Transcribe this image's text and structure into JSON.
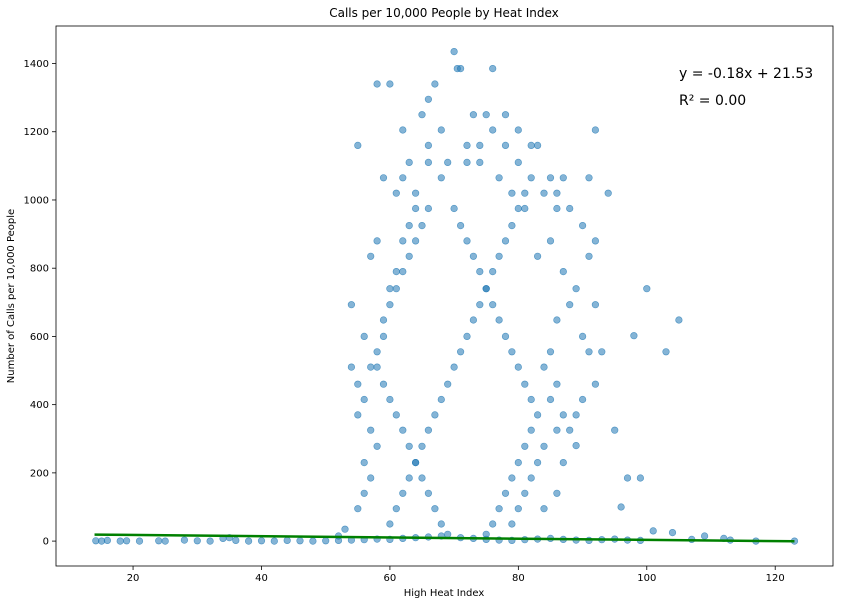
{
  "chart_data": {
    "type": "scatter",
    "title": "Calls per 10,000 People by Heat Index",
    "xlabel": "High Heat Index",
    "ylabel": "Number of Calls per 10,000 People",
    "xlim": [
      8,
      129
    ],
    "ylim": [
      -73,
      1510
    ],
    "xticks": [
      20,
      40,
      60,
      80,
      100,
      120
    ],
    "yticks": [
      0,
      200,
      400,
      600,
      800,
      1000,
      1200,
      1400
    ],
    "grid": false,
    "colors": {
      "points": "#1f77b4",
      "fit_line": "#008000"
    },
    "annotations": {
      "equation": "y = -0.18x + 21.53",
      "r_squared": "R² = 0.00"
    },
    "fit_line": {
      "slope": -0.18,
      "intercept": 21.53,
      "x_range": [
        14,
        123
      ]
    },
    "series": [
      {
        "values": [
          [
            14.2,
            1
          ],
          [
            15.1,
            0
          ],
          [
            16,
            2
          ],
          [
            18,
            0
          ],
          [
            19,
            1
          ],
          [
            21,
            0
          ],
          [
            24,
            1
          ],
          [
            25,
            0
          ],
          [
            28,
            3
          ],
          [
            30,
            1
          ],
          [
            32,
            0
          ],
          [
            34,
            8
          ],
          [
            35,
            10
          ],
          [
            36,
            2
          ],
          [
            38,
            0
          ],
          [
            40,
            1
          ],
          [
            42,
            0
          ],
          [
            44,
            2
          ],
          [
            55,
            1160
          ],
          [
            58,
            1340
          ],
          [
            60,
            1340
          ],
          [
            62,
            1205
          ],
          [
            65,
            1250
          ],
          [
            66,
            1295
          ],
          [
            67,
            1340
          ],
          [
            70,
            1435
          ],
          [
            70.5,
            1385
          ],
          [
            71,
            1385
          ],
          [
            73,
            1250
          ],
          [
            75,
            1250
          ],
          [
            76,
            1385
          ],
          [
            78,
            1250
          ],
          [
            80,
            1205
          ],
          [
            83,
            1160
          ],
          [
            92,
            1205
          ],
          [
            94,
            1020
          ],
          [
            91,
            1065
          ],
          [
            100,
            740
          ],
          [
            105,
            648
          ],
          [
            103,
            555
          ],
          [
            98,
            602
          ],
          [
            99,
            185
          ],
          [
            95,
            325
          ],
          [
            93,
            555
          ],
          [
            92,
            693
          ],
          [
            97,
            185
          ],
          [
            96,
            100
          ],
          [
            117,
            0
          ],
          [
            123,
            0
          ],
          [
            112,
            8
          ],
          [
            109,
            15
          ],
          [
            104,
            25
          ],
          [
            101,
            30
          ],
          [
            107,
            5
          ],
          [
            113,
            3
          ],
          [
            52,
            15
          ],
          [
            53,
            35
          ],
          [
            54,
            510
          ],
          [
            55,
            370
          ],
          [
            56,
            600
          ],
          [
            57,
            835
          ],
          [
            54,
            693
          ],
          [
            56,
            230
          ],
          [
            58,
            880
          ],
          [
            59,
            1065
          ],
          [
            61,
            1020
          ],
          [
            63,
            1110
          ],
          [
            64,
            1020
          ],
          [
            66,
            1110
          ],
          [
            68,
            1065
          ],
          [
            69,
            1110
          ],
          [
            72,
            1110
          ],
          [
            74,
            1110
          ],
          [
            77,
            1065
          ],
          [
            79,
            1020
          ],
          [
            81,
            975
          ],
          [
            82,
            1065
          ],
          [
            84,
            1020
          ],
          [
            86,
            1020
          ],
          [
            88,
            975
          ],
          [
            90,
            925
          ],
          [
            91,
            835
          ],
          [
            92,
            880
          ],
          [
            89,
            740
          ],
          [
            90,
            600
          ],
          [
            91,
            555
          ],
          [
            92,
            460
          ],
          [
            90,
            415
          ],
          [
            89,
            370
          ],
          [
            88,
            325
          ],
          [
            89,
            280
          ],
          [
            87,
            230
          ],
          [
            86,
            140
          ],
          [
            84,
            95
          ],
          [
            55,
            95
          ],
          [
            56,
            140
          ],
          [
            57,
            185
          ],
          [
            58,
            278
          ],
          [
            57,
            325
          ],
          [
            56,
            415
          ],
          [
            55,
            460
          ],
          [
            57,
            510
          ],
          [
            58,
            555
          ],
          [
            59,
            648
          ],
          [
            60,
            740
          ],
          [
            61,
            790
          ],
          [
            62,
            880
          ],
          [
            63,
            925
          ],
          [
            64,
            975
          ],
          [
            62,
            1065
          ],
          [
            66,
            1160
          ],
          [
            68,
            1205
          ],
          [
            72,
            1160
          ],
          [
            74,
            1160
          ],
          [
            76,
            1205
          ],
          [
            78,
            1160
          ],
          [
            80,
            1110
          ],
          [
            82,
            1160
          ],
          [
            85,
            1065
          ],
          [
            87,
            1065
          ],
          [
            86,
            975
          ],
          [
            85,
            880
          ],
          [
            83,
            835
          ],
          [
            87,
            790
          ],
          [
            88,
            693
          ],
          [
            86,
            648
          ],
          [
            85,
            555
          ],
          [
            84,
            510
          ],
          [
            86,
            460
          ],
          [
            85,
            415
          ],
          [
            87,
            370
          ],
          [
            86,
            325
          ],
          [
            84,
            278
          ],
          [
            83,
            230
          ],
          [
            82,
            185
          ],
          [
            81,
            140
          ],
          [
            80,
            95
          ],
          [
            79,
            50
          ],
          [
            60,
            50
          ],
          [
            61,
            95
          ],
          [
            62,
            140
          ],
          [
            63,
            185
          ],
          [
            64,
            230
          ],
          [
            65,
            278
          ],
          [
            66,
            325
          ],
          [
            67,
            370
          ],
          [
            68,
            415
          ],
          [
            69,
            460
          ],
          [
            70,
            510
          ],
          [
            71,
            555
          ],
          [
            72,
            600
          ],
          [
            73,
            648
          ],
          [
            74,
            693
          ],
          [
            75,
            740
          ],
          [
            76,
            790
          ],
          [
            77,
            835
          ],
          [
            78,
            880
          ],
          [
            79,
            925
          ],
          [
            80,
            975
          ],
          [
            81,
            1020
          ],
          [
            70,
            975
          ],
          [
            71,
            925
          ],
          [
            72,
            880
          ],
          [
            73,
            835
          ],
          [
            74,
            790
          ],
          [
            75,
            740
          ],
          [
            76,
            693
          ],
          [
            77,
            648
          ],
          [
            78,
            600
          ],
          [
            79,
            555
          ],
          [
            80,
            510
          ],
          [
            81,
            460
          ],
          [
            82,
            415
          ],
          [
            83,
            370
          ],
          [
            82,
            325
          ],
          [
            81,
            278
          ],
          [
            80,
            230
          ],
          [
            79,
            185
          ],
          [
            78,
            140
          ],
          [
            77,
            95
          ],
          [
            76,
            50
          ],
          [
            75,
            20
          ],
          [
            66,
            975
          ],
          [
            65,
            925
          ],
          [
            64,
            880
          ],
          [
            63,
            835
          ],
          [
            62,
            790
          ],
          [
            61,
            740
          ],
          [
            60,
            693
          ],
          [
            59,
            600
          ],
          [
            58,
            510
          ],
          [
            59,
            460
          ],
          [
            60,
            415
          ],
          [
            61,
            370
          ],
          [
            62,
            325
          ],
          [
            63,
            278
          ],
          [
            64,
            230
          ],
          [
            65,
            185
          ],
          [
            66,
            140
          ],
          [
            67,
            95
          ],
          [
            68,
            50
          ],
          [
            69,
            20
          ],
          [
            71,
            10
          ],
          [
            73,
            8
          ],
          [
            75,
            5
          ],
          [
            77,
            3
          ],
          [
            79,
            2
          ],
          [
            81,
            4
          ],
          [
            83,
            6
          ],
          [
            85,
            8
          ],
          [
            87,
            5
          ],
          [
            89,
            3
          ],
          [
            91,
            2
          ],
          [
            93,
            4
          ],
          [
            95,
            6
          ],
          [
            97,
            3
          ],
          [
            99,
            2
          ],
          [
            60,
            5
          ],
          [
            62,
            8
          ],
          [
            64,
            10
          ],
          [
            66,
            12
          ],
          [
            68,
            15
          ],
          [
            58,
            6
          ],
          [
            56,
            4
          ],
          [
            54,
            3
          ],
          [
            52,
            2
          ],
          [
            50,
            1
          ],
          [
            48,
            0
          ],
          [
            46,
            1
          ]
        ]
      }
    ]
  }
}
